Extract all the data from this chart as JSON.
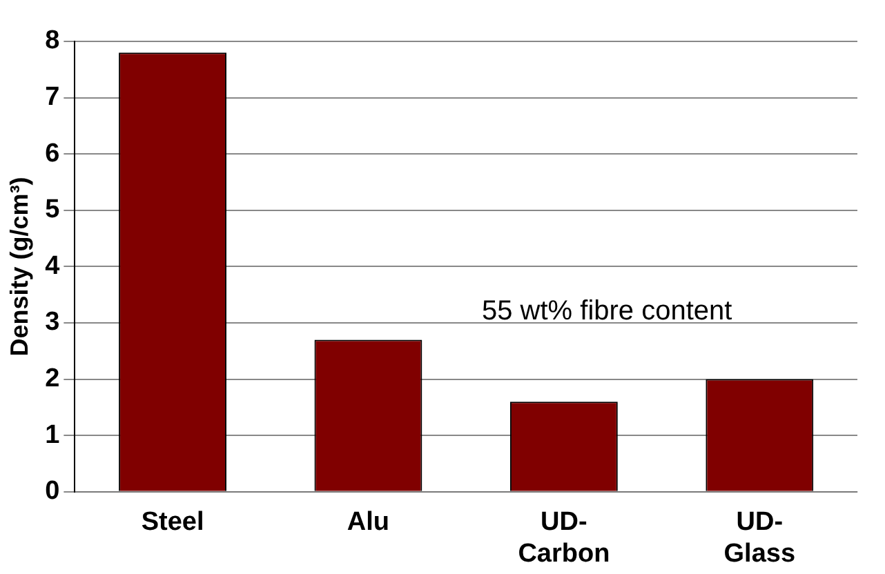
{
  "chart_data": {
    "type": "bar",
    "ylabel": "Density (g/cm³)",
    "categories": [
      "Steel",
      "Alu",
      "UD-\nCarbon",
      "UD-\nGlass"
    ],
    "values": [
      7.8,
      2.7,
      1.6,
      2.0
    ],
    "color": "#800000",
    "ylim": [
      0,
      8
    ],
    "yticks": [
      0,
      1,
      2,
      3,
      4,
      5,
      6,
      7,
      8
    ],
    "grid": "y",
    "annotations": [
      "55 wt% fibre content"
    ]
  }
}
